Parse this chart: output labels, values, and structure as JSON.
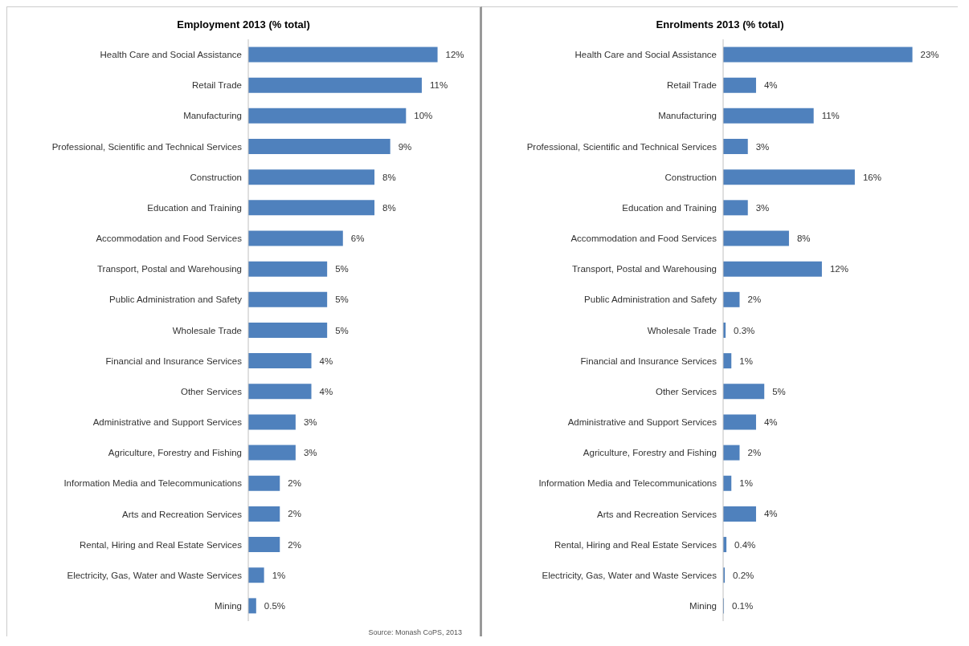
{
  "chart_data": [
    {
      "type": "bar",
      "orientation": "horizontal",
      "title": "Employment 2013 (% total)",
      "categories": [
        "Health Care and Social Assistance",
        "Retail Trade",
        "Manufacturing",
        "Professional, Scientific and Technical Services",
        "Construction",
        "Education and Training",
        "Accommodation and Food Services",
        "Transport, Postal and Warehousing",
        "Public Administration and Safety",
        "Wholesale Trade",
        "Financial and Insurance Services",
        "Other Services",
        "Administrative and Support Services",
        "Agriculture, Forestry and Fishing",
        "Information Media and Telecommunications",
        "Arts and Recreation Services",
        "Rental, Hiring and Real Estate Services",
        "Electricity, Gas, Water and Waste Services",
        "Mining"
      ],
      "values": [
        12,
        11,
        10,
        9,
        8,
        8,
        6,
        5,
        5,
        5,
        4,
        4,
        3,
        3,
        2,
        2,
        2,
        1,
        0.5
      ],
      "value_labels": [
        "12%",
        "11%",
        "10%",
        "9%",
        "8%",
        "8%",
        "6%",
        "5%",
        "5%",
        "5%",
        "4%",
        "4%",
        "3%",
        "3%",
        "2%",
        "2%",
        "2%",
        "1%",
        "0.5%"
      ],
      "color": "#4f81bd",
      "annotations": [
        "Source: Monash CoPS, 2013"
      ]
    },
    {
      "type": "bar",
      "orientation": "horizontal",
      "title": "Enrolments 2013 (% total)",
      "categories": [
        "Health Care and Social Assistance",
        "Retail Trade",
        "Manufacturing",
        "Professional, Scientific and Technical Services",
        "Construction",
        "Education and Training",
        "Accommodation and Food Services",
        "Transport, Postal and Warehousing",
        "Public Administration and Safety",
        "Wholesale Trade",
        "Financial and Insurance Services",
        "Other Services",
        "Administrative and Support Services",
        "Agriculture, Forestry and Fishing",
        "Information Media and Telecommunications",
        "Arts and Recreation Services",
        "Rental, Hiring and Real Estate Services",
        "Electricity, Gas, Water and Waste Services",
        "Mining"
      ],
      "values": [
        23,
        4,
        11,
        3,
        16,
        3,
        8,
        12,
        2,
        0.3,
        1,
        5,
        4,
        2,
        1,
        4,
        0.4,
        0.2,
        0.1
      ],
      "value_labels": [
        "23%",
        "4%",
        "11%",
        "3%",
        "16%",
        "3%",
        "8%",
        "12%",
        "2%",
        "0.3%",
        "1%",
        "5%",
        "4%",
        "2%",
        "1%",
        "4%",
        "0.4%",
        "0.2%",
        "0.1%"
      ],
      "color": "#4f81bd"
    }
  ]
}
